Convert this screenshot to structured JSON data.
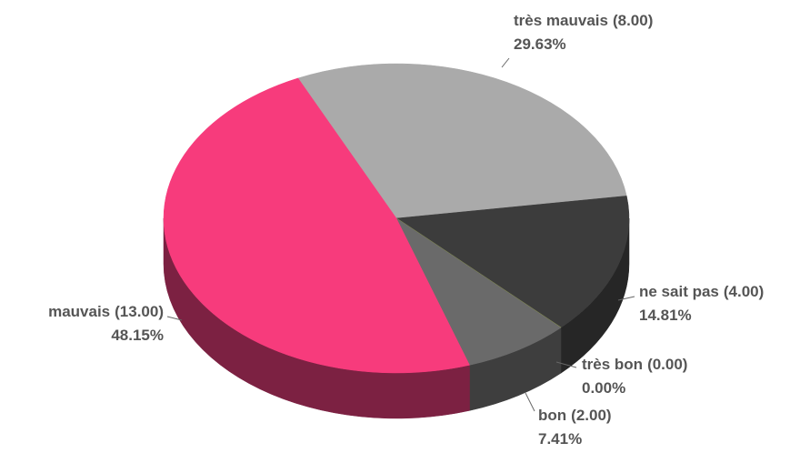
{
  "chart_data": {
    "type": "pie3d",
    "categories": [
      "très mauvais",
      "ne sait pas",
      "très bon",
      "bon",
      "mauvais"
    ],
    "values": [
      8,
      4,
      0,
      2,
      13
    ],
    "value_labels": [
      "(8.00)",
      "(4.00)",
      "(0.00)",
      "(2.00)",
      "(13.00)"
    ],
    "percents": [
      29.63,
      14.81,
      0,
      7.41,
      48.15
    ],
    "percent_labels": [
      "29.63%",
      "14.81%",
      "0.00%",
      "7.41%",
      "48.15%"
    ],
    "colors": [
      "#aaaaaa",
      "#3c3c3c",
      "#6f7a3a",
      "#6a6a6a",
      "#f73b7c"
    ],
    "side_colors": [
      "#6e6e6e",
      "#262626",
      "#4a5226",
      "#3e3e3e",
      "#7c2142"
    ]
  }
}
